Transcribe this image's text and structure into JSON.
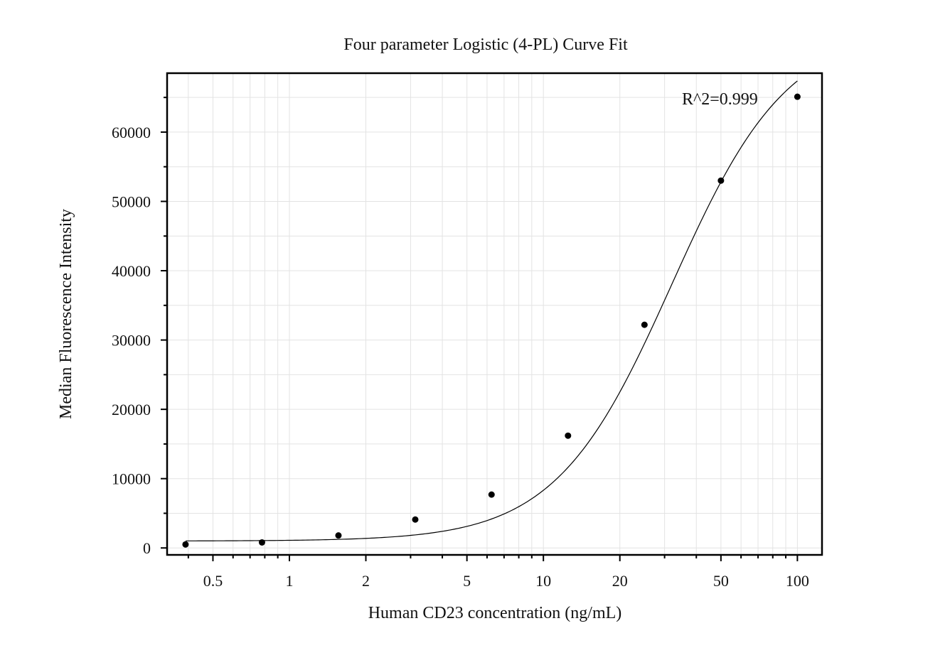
{
  "chart_data": {
    "type": "scatter",
    "title": "Four parameter Logistic (4-PL) Curve Fit",
    "xlabel": "Human CD23 concentration (ng/mL)",
    "ylabel": "Median Fluorescence Intensity",
    "x_scale": "log",
    "xlim": [
      0.33,
      125
    ],
    "ylim": [
      -1000,
      68500
    ],
    "x_ticks": [
      0.5,
      1,
      2,
      5,
      10,
      20,
      50,
      100
    ],
    "x_tick_labels": [
      "0.5",
      "1",
      "2",
      "5",
      "10",
      "20",
      "50",
      "100"
    ],
    "y_ticks": [
      0,
      10000,
      20000,
      30000,
      40000,
      50000,
      60000
    ],
    "y_tick_labels": [
      "0",
      "10000",
      "20000",
      "30000",
      "40000",
      "50000",
      "60000"
    ],
    "grid": true,
    "legend": "none",
    "annotation": "R^2=0.999",
    "series": [
      {
        "type": "scatter",
        "x": [
          0.39,
          0.78,
          1.56,
          3.13,
          6.25,
          12.5,
          25,
          50,
          100
        ],
        "y": [
          500,
          800,
          1800,
          4100,
          7700,
          16200,
          32200,
          53000,
          65100
        ]
      },
      {
        "type": "line",
        "fit": "4PL",
        "params": {
          "A": 1000,
          "D": 75000,
          "C": 32,
          "B": 1.9
        }
      }
    ],
    "colors": {
      "points": "#000000",
      "curve": "#000000",
      "grid": "#e3e3e3",
      "frame": "#000000"
    }
  }
}
